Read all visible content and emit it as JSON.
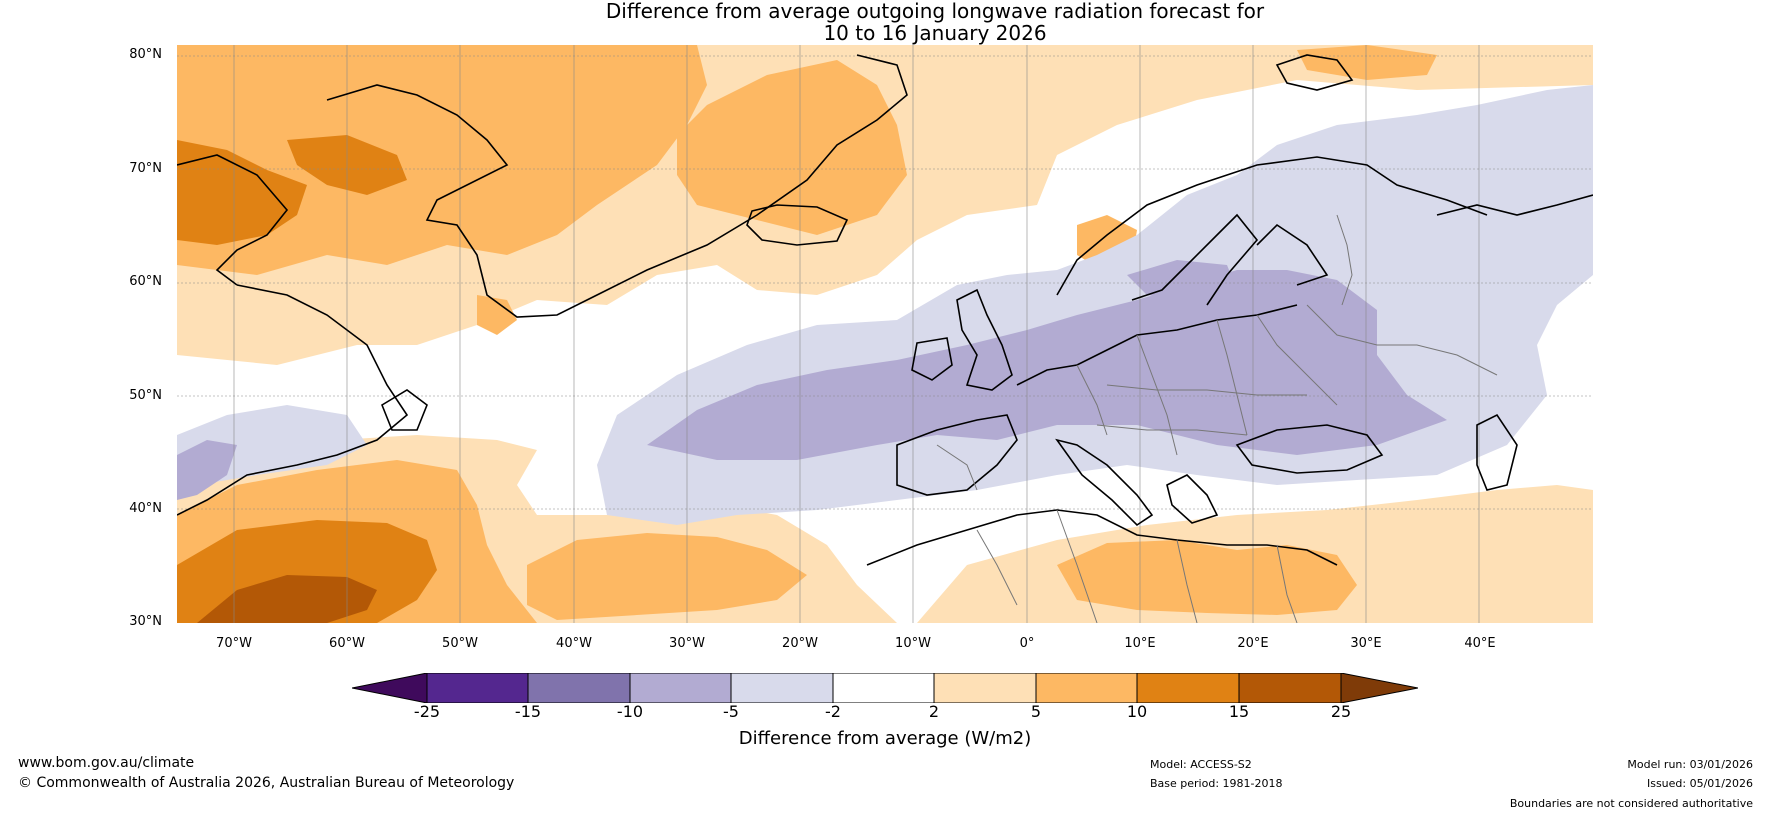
{
  "title": {
    "line1": "Difference from average outgoing longwave radiation forecast for",
    "line2": "10 to 16 January 2026"
  },
  "map": {
    "lat_labels": [
      "80°N",
      "70°N",
      "60°N",
      "50°N",
      "40°N",
      "30°N"
    ],
    "lon_labels": [
      "70°W",
      "60°W",
      "50°W",
      "40°W",
      "30°W",
      "20°W",
      "10°W",
      "0°",
      "10°E",
      "20°E",
      "30°E",
      "40°E"
    ],
    "lat_range": [
      30,
      81
    ],
    "lon_range": [
      -75,
      50
    ],
    "regions": [
      {
        "name": "Greenland and Canadian Arctic",
        "category": "5 to 10"
      },
      {
        "name": "Baffin Bay",
        "category": "10 to 15"
      },
      {
        "name": "Subtropical western Atlantic",
        "category": "15 to 25"
      },
      {
        "name": "Central Atlantic to Europe",
        "category": "-10 to -5"
      },
      {
        "name": "Scandinavia and Barents Sea",
        "category": "-5 to -2"
      },
      {
        "name": "North Africa and Eastern Mediterranean",
        "category": "5 to 10"
      }
    ]
  },
  "colorbar": {
    "title": "Difference from average (W/m2)",
    "ticks": [
      "-25",
      "-15",
      "-10",
      "-5",
      "-2",
      "2",
      "5",
      "10",
      "15",
      "25"
    ],
    "colors": [
      "#3f0a5c",
      "#54278f",
      "#8073ac",
      "#b2abd2",
      "#d8daeb",
      "#ffffff",
      "#fee0b6",
      "#fdb863",
      "#e08214",
      "#b35806",
      "#7f3b08"
    ]
  },
  "footer": {
    "website": "www.bom.gov.au/climate",
    "copyright": "© Commonwealth of Australia 2026, Australian Bureau of Meteorology",
    "model": "Model: ACCESS-S2",
    "base_period": "Base period: 1981-2018",
    "model_run": "Model run: 03/01/2026",
    "issued": "Issued: 05/01/2026",
    "disclaimer": "Boundaries are not considered authoritative"
  }
}
